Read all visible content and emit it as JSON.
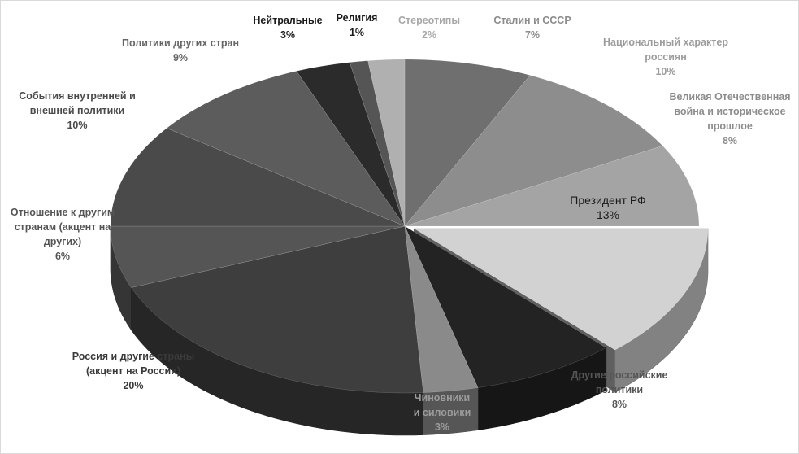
{
  "chart_data": {
    "type": "pie",
    "style": "3d-exploded-shaded",
    "title": "",
    "slices": [
      {
        "label": "Сталин и СССР",
        "value": 7,
        "display": "7%",
        "color": "#6f6f6f",
        "label_color": "#8c8c8c",
        "label_lines": [
          "Сталин и СССР",
          "7%"
        ]
      },
      {
        "label": "Национальный характер россиян",
        "value": 10,
        "display": "10%",
        "color": "#8d8d8d",
        "label_color": "#9c9c9c",
        "label_lines": [
          "Национальный  характер",
          "россиян",
          "10%"
        ]
      },
      {
        "label": "Великая Отечественная война и историческое прошлое",
        "value": 8,
        "display": "8%",
        "color": "#a4a4a4",
        "label_color": "#8c8c8c",
        "label_lines": [
          "Великая  Отечественная",
          "война и историческое",
          "прошлое",
          "8%"
        ]
      },
      {
        "label": "Президент РФ",
        "value": 13,
        "display": "13%",
        "color": "#d2d2d2",
        "label_color": "#1a1a1a",
        "label_lines": [
          "Президент РФ",
          "13%"
        ]
      },
      {
        "label": "Другие российские политики",
        "value": 8,
        "display": "8%",
        "color": "#232323",
        "label_color": "#555555",
        "label_lines": [
          "Другие российские",
          "политики",
          "8%"
        ]
      },
      {
        "label": "Чиновники и силовики",
        "value": 3,
        "display": "3%",
        "color": "#8a8a8a",
        "label_color": "#9c9c9c",
        "label_lines": [
          "Чиновники",
          "и силовики",
          "3%"
        ]
      },
      {
        "label": "Россия и другие страны (акцент на России)",
        "value": 20,
        "display": "20%",
        "color": "#3e3e3e",
        "label_color": "#3a3a3a",
        "label_lines": [
          "Россия и другие страны",
          "(акцент на России)",
          "20%"
        ]
      },
      {
        "label": "Отношение к другим странам (акцент на других)",
        "value": 6,
        "display": "6%",
        "color": "#555555",
        "label_color": "#555555",
        "label_lines": [
          "Отношение к другим",
          "странам  (акцент на",
          "других)",
          "6%"
        ]
      },
      {
        "label": "События внутренней и внешней политики",
        "value": 10,
        "display": "10%",
        "color": "#4a4a4a",
        "label_color": "#4a4a4a",
        "label_lines": [
          "События внутренней и",
          "внешней политики",
          "10%"
        ]
      },
      {
        "label": "Политики других стран",
        "value": 9,
        "display": "9%",
        "color": "#5c5c5c",
        "label_color": "#666666",
        "label_lines": [
          "Политики  других стран",
          "9%"
        ]
      },
      {
        "label": "Нейтральные",
        "value": 3,
        "display": "3%",
        "color": "#2b2b2b",
        "label_color": "#1a1a1a",
        "label_lines": [
          "Нейтральные",
          "3%"
        ]
      },
      {
        "label": "Религия",
        "value": 1,
        "display": "1%",
        "color": "#555555",
        "label_color": "#1a1a1a",
        "label_lines": [
          "Религия",
          "1%"
        ]
      },
      {
        "label": "Стереотипы",
        "value": 2,
        "display": "2%",
        "color": "#b0b0b0",
        "label_color": "#a8a8a8",
        "label_lines": [
          "Стереотипы",
          "2%"
        ]
      }
    ],
    "legend": "none",
    "start_angle": "12 o'clock",
    "direction": "clockwise"
  }
}
